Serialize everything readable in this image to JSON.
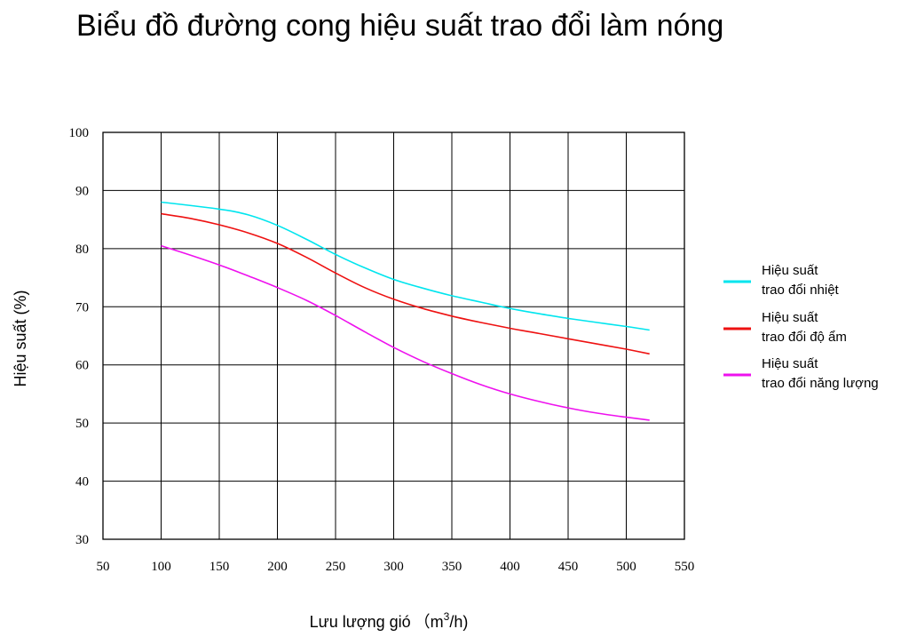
{
  "chart_data": {
    "type": "line",
    "title": "Biểu đồ đường cong hiệu suất trao đổi làm nóng",
    "xlabel": "Lưu lượng gió",
    "xlabel_unit_pre": "（m",
    "xlabel_unit_sup": "3",
    "xlabel_unit_post": "/h)",
    "ylabel": "Hiệu suất (%)",
    "xlim": [
      50,
      550
    ],
    "ylim": [
      30,
      100
    ],
    "x_ticks": [
      "50",
      "100",
      "150",
      "200",
      "250",
      "300",
      "350",
      "400",
      "450",
      "500",
      "550"
    ],
    "y_ticks": [
      "30",
      "40",
      "50",
      "60",
      "70",
      "80",
      "90",
      "100"
    ],
    "grid": true,
    "legend_position": "right",
    "series": [
      {
        "name_line1": "Hiệu suất",
        "name_line2": "trao đổi nhiệt",
        "color": "#00e5ee",
        "points": [
          [
            100,
            88.0
          ],
          [
            150,
            86.8
          ],
          [
            175,
            85.8
          ],
          [
            200,
            84.0
          ],
          [
            225,
            81.6
          ],
          [
            250,
            79.0
          ],
          [
            275,
            76.7
          ],
          [
            300,
            74.7
          ],
          [
            325,
            73.2
          ],
          [
            350,
            71.9
          ],
          [
            375,
            70.8
          ],
          [
            400,
            69.7
          ],
          [
            425,
            68.8
          ],
          [
            450,
            68.0
          ],
          [
            475,
            67.3
          ],
          [
            500,
            66.6
          ],
          [
            520,
            66.0
          ]
        ]
      },
      {
        "name_line1": "Hiệu suất",
        "name_line2": "trao đổi độ ẩm",
        "color": "#ee1111",
        "points": [
          [
            100,
            86.0
          ],
          [
            125,
            85.2
          ],
          [
            150,
            84.1
          ],
          [
            175,
            82.7
          ],
          [
            200,
            80.9
          ],
          [
            225,
            78.5
          ],
          [
            250,
            75.8
          ],
          [
            275,
            73.3
          ],
          [
            300,
            71.3
          ],
          [
            325,
            69.7
          ],
          [
            350,
            68.4
          ],
          [
            375,
            67.3
          ],
          [
            400,
            66.3
          ],
          [
            425,
            65.4
          ],
          [
            450,
            64.5
          ],
          [
            475,
            63.6
          ],
          [
            500,
            62.7
          ],
          [
            520,
            61.9
          ]
        ]
      },
      {
        "name_line1": "Hiệu suất",
        "name_line2": "trao đổi năng lượng",
        "color": "#ee11ee",
        "points": [
          [
            100,
            80.5
          ],
          [
            125,
            78.9
          ],
          [
            150,
            77.2
          ],
          [
            175,
            75.3
          ],
          [
            200,
            73.3
          ],
          [
            225,
            71.1
          ],
          [
            250,
            68.5
          ],
          [
            275,
            65.7
          ],
          [
            300,
            63.0
          ],
          [
            325,
            60.6
          ],
          [
            350,
            58.5
          ],
          [
            375,
            56.6
          ],
          [
            400,
            55.0
          ],
          [
            425,
            53.7
          ],
          [
            450,
            52.6
          ],
          [
            475,
            51.7
          ],
          [
            500,
            51.0
          ],
          [
            520,
            50.5
          ]
        ]
      }
    ]
  }
}
